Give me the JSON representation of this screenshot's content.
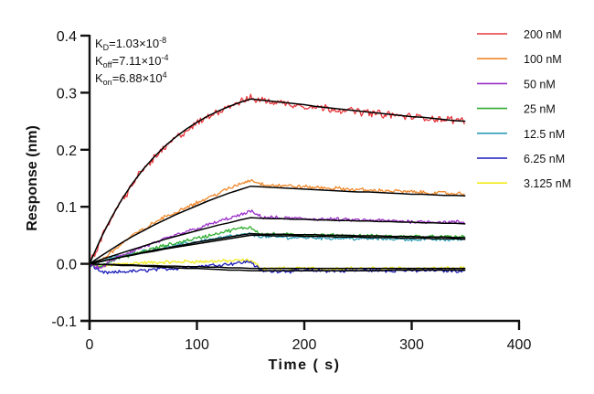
{
  "chart_data": {
    "type": "line",
    "title": "",
    "xlabel": "Time ( s)",
    "ylabel": "Response (nm)",
    "xlim": [
      0,
      400
    ],
    "ylim": [
      -0.1,
      0.4
    ],
    "x_ticks": [
      "0",
      "100",
      "200",
      "300",
      "400"
    ],
    "y_ticks": [
      "-0.1",
      "0.0",
      "0.1",
      "0.2",
      "0.3",
      "0.4"
    ],
    "grid": false,
    "legend_position": "top-right",
    "annotations": [
      {
        "main": "K",
        "sub": "D",
        "rest": "=1.03×10",
        "sup": "-8"
      },
      {
        "main": "K",
        "sub": "off",
        "rest": "=7.11×10",
        "sup": "-4"
      },
      {
        "main": "K",
        "sub": "on",
        "rest": "=6.88×10",
        "sup": "4"
      }
    ],
    "fit_color": "#000000",
    "association_end": 150,
    "x": [
      0,
      10,
      20,
      30,
      40,
      50,
      60,
      70,
      80,
      90,
      100,
      110,
      120,
      130,
      140,
      150,
      160,
      170,
      180,
      190,
      200,
      210,
      220,
      230,
      240,
      250,
      260,
      270,
      280,
      290,
      300,
      310,
      320,
      330,
      340,
      350
    ],
    "series": [
      {
        "name": "200 nM",
        "color": "#e8383d",
        "values": [
          0.0,
          0.04,
          0.08,
          0.11,
          0.14,
          0.166,
          0.185,
          0.203,
          0.22,
          0.233,
          0.246,
          0.257,
          0.268,
          0.277,
          0.284,
          0.29,
          0.287,
          0.284,
          0.282,
          0.279,
          0.277,
          0.275,
          0.273,
          0.271,
          0.269,
          0.267,
          0.265,
          0.263,
          0.261,
          0.259,
          0.258,
          0.256,
          0.255,
          0.253,
          0.252,
          0.251
        ],
        "fit": [
          0.0,
          0.043,
          0.08,
          0.113,
          0.141,
          0.166,
          0.187,
          0.206,
          0.222,
          0.236,
          0.248,
          0.259,
          0.268,
          0.276,
          0.283,
          0.289,
          0.287,
          0.285,
          0.283,
          0.281,
          0.279,
          0.276,
          0.274,
          0.272,
          0.27,
          0.268,
          0.266,
          0.264,
          0.262,
          0.26,
          0.258,
          0.257,
          0.255,
          0.253,
          0.251,
          0.25
        ]
      },
      {
        "name": "100 nM",
        "color": "#f0882a",
        "values": [
          0.0,
          0.005,
          0.02,
          0.035,
          0.05,
          0.06,
          0.072,
          0.082,
          0.09,
          0.1,
          0.107,
          0.115,
          0.124,
          0.132,
          0.14,
          0.147,
          0.14,
          0.138,
          0.137,
          0.136,
          0.135,
          0.134,
          0.133,
          0.132,
          0.131,
          0.13,
          0.129,
          0.128,
          0.128,
          0.127,
          0.126,
          0.125,
          0.124,
          0.124,
          0.123,
          0.123
        ],
        "fit": [
          0.0,
          0.013,
          0.025,
          0.037,
          0.048,
          0.058,
          0.068,
          0.077,
          0.086,
          0.094,
          0.102,
          0.11,
          0.117,
          0.124,
          0.13,
          0.136,
          0.135,
          0.134,
          0.133,
          0.132,
          0.131,
          0.13,
          0.129,
          0.128,
          0.127,
          0.126,
          0.126,
          0.125,
          0.124,
          0.123,
          0.122,
          0.122,
          0.121,
          0.12,
          0.12,
          0.119
        ]
      },
      {
        "name": "50 nM",
        "color": "#9b2fc8",
        "values": [
          0.0,
          -0.008,
          0.005,
          0.015,
          0.022,
          0.03,
          0.036,
          0.043,
          0.05,
          0.056,
          0.062,
          0.068,
          0.074,
          0.08,
          0.085,
          0.092,
          0.082,
          0.081,
          0.08,
          0.08,
          0.079,
          0.079,
          0.078,
          0.078,
          0.077,
          0.077,
          0.076,
          0.076,
          0.075,
          0.075,
          0.074,
          0.074,
          0.074,
          0.073,
          0.073,
          0.073
        ],
        "fit": [
          0.0,
          0.007,
          0.013,
          0.019,
          0.025,
          0.031,
          0.037,
          0.043,
          0.048,
          0.053,
          0.058,
          0.063,
          0.068,
          0.072,
          0.077,
          0.081,
          0.08,
          0.079,
          0.079,
          0.078,
          0.078,
          0.077,
          0.077,
          0.076,
          0.076,
          0.075,
          0.075,
          0.074,
          0.074,
          0.073,
          0.073,
          0.072,
          0.072,
          0.071,
          0.071,
          0.07
        ]
      },
      {
        "name": "25 nM",
        "color": "#2fae2f",
        "values": [
          0.0,
          -0.005,
          0.006,
          0.012,
          0.016,
          0.022,
          0.027,
          0.032,
          0.036,
          0.041,
          0.045,
          0.049,
          0.054,
          0.058,
          0.062,
          0.064,
          0.052,
          0.052,
          0.051,
          0.051,
          0.051,
          0.05,
          0.05,
          0.05,
          0.049,
          0.049,
          0.049,
          0.048,
          0.048,
          0.048,
          0.048,
          0.048,
          0.047,
          0.047,
          0.047,
          0.048
        ],
        "fit": [
          0.0,
          0.004,
          0.008,
          0.012,
          0.016,
          0.02,
          0.024,
          0.027,
          0.031,
          0.034,
          0.038,
          0.041,
          0.044,
          0.047,
          0.05,
          0.053,
          0.052,
          0.052,
          0.052,
          0.051,
          0.051,
          0.051,
          0.05,
          0.05,
          0.05,
          0.049,
          0.049,
          0.049,
          0.048,
          0.048,
          0.048,
          0.047,
          0.047,
          0.047,
          0.046,
          0.046
        ]
      },
      {
        "name": "12.5 nM",
        "color": "#2a9db5",
        "values": [
          0.0,
          0.004,
          0.01,
          0.014,
          0.018,
          0.022,
          0.025,
          0.029,
          0.032,
          0.036,
          0.039,
          0.042,
          0.045,
          0.048,
          0.05,
          0.052,
          0.048,
          0.047,
          0.047,
          0.046,
          0.046,
          0.046,
          0.045,
          0.045,
          0.045,
          0.044,
          0.044,
          0.044,
          0.044,
          0.043,
          0.043,
          0.043,
          0.043,
          0.042,
          0.043,
          0.043
        ],
        "fit": [
          0.0,
          0.004,
          0.008,
          0.012,
          0.015,
          0.019,
          0.022,
          0.026,
          0.029,
          0.032,
          0.035,
          0.038,
          0.041,
          0.044,
          0.047,
          0.05,
          0.05,
          0.049,
          0.049,
          0.049,
          0.048,
          0.048,
          0.048,
          0.047,
          0.047,
          0.047,
          0.046,
          0.046,
          0.046,
          0.045,
          0.045,
          0.045,
          0.044,
          0.044,
          0.044,
          0.043
        ]
      },
      {
        "name": "6.25 nM",
        "color": "#1a1ab8",
        "values": [
          0.0,
          -0.015,
          -0.016,
          -0.014,
          -0.013,
          -0.012,
          -0.01,
          -0.009,
          -0.008,
          -0.006,
          -0.005,
          -0.003,
          -0.002,
          0.0,
          0.002,
          0.004,
          -0.013,
          -0.013,
          -0.012,
          -0.013,
          -0.012,
          -0.012,
          -0.012,
          -0.013,
          -0.012,
          -0.012,
          -0.011,
          -0.012,
          -0.012,
          -0.011,
          -0.012,
          -0.012,
          -0.011,
          -0.012,
          -0.012,
          -0.012
        ],
        "fit": [
          0.0,
          -0.001,
          -0.002,
          -0.003,
          -0.003,
          -0.004,
          -0.005,
          -0.006,
          -0.007,
          -0.008,
          -0.008,
          -0.009,
          -0.01,
          -0.011,
          -0.011,
          -0.012,
          -0.012,
          -0.012,
          -0.012,
          -0.012,
          -0.012,
          -0.012,
          -0.012,
          -0.012,
          -0.012,
          -0.012,
          -0.012,
          -0.012,
          -0.011,
          -0.011,
          -0.011,
          -0.011,
          -0.011,
          -0.011,
          -0.011,
          -0.011
        ]
      },
      {
        "name": "3.125 nM",
        "color": "#f2ea1e",
        "values": [
          0.0,
          -0.004,
          -0.002,
          0.0,
          0.001,
          0.002,
          0.002,
          0.003,
          0.003,
          0.004,
          0.004,
          0.004,
          0.005,
          0.005,
          0.006,
          0.006,
          -0.008,
          -0.008,
          -0.008,
          -0.009,
          -0.008,
          -0.008,
          -0.009,
          -0.008,
          -0.008,
          -0.008,
          -0.009,
          -0.008,
          -0.008,
          -0.008,
          -0.008,
          -0.008,
          -0.008,
          -0.008,
          -0.008,
          -0.007
        ],
        "fit": [
          0.0,
          -0.001,
          -0.001,
          -0.002,
          -0.002,
          -0.003,
          -0.003,
          -0.004,
          -0.004,
          -0.005,
          -0.005,
          -0.006,
          -0.006,
          -0.007,
          -0.007,
          -0.008,
          -0.008,
          -0.008,
          -0.008,
          -0.008,
          -0.008,
          -0.008,
          -0.008,
          -0.008,
          -0.008,
          -0.008,
          -0.008,
          -0.008,
          -0.008,
          -0.008,
          -0.008,
          -0.008,
          -0.008,
          -0.008,
          -0.008,
          -0.008
        ]
      }
    ]
  }
}
